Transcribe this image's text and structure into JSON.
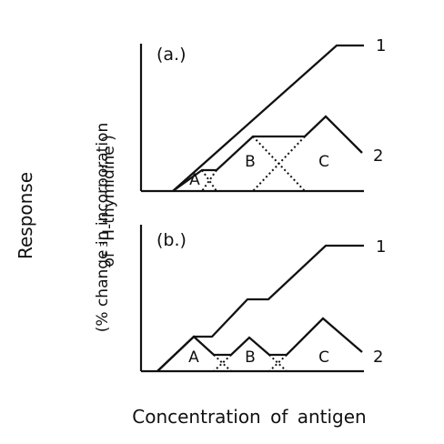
{
  "y_title": "Response",
  "y_subtitle_line1": "(% change in incorporation",
  "y_subtitle_line2_pre": "of ",
  "y_subtitle_line2_sup": "3",
  "y_subtitle_line2_post": "H-thymidine )",
  "x_title": "Concentration of antigen",
  "chart_data": [
    {
      "type": "line",
      "panel_label": "(a.)",
      "series": [
        {
          "name": "1",
          "points": [
            [
              190,
              210
            ],
            [
              370,
              50
            ],
            [
              400,
              50
            ]
          ]
        },
        {
          "name": "2",
          "points": [
            [
              190,
              210
            ],
            [
              222,
              187
            ],
            [
              238,
              187
            ],
            [
              278,
              150
            ],
            [
              335,
              150
            ],
            [
              358,
              128
            ],
            [
              398,
              168
            ]
          ]
        }
      ],
      "dotted": [
        [
          [
            222,
            187
          ],
          [
            238,
            210
          ]
        ],
        [
          [
            238,
            187
          ],
          [
            222,
            210
          ]
        ],
        [
          [
            278,
            150
          ],
          [
            335,
            210
          ]
        ],
        [
          [
            335,
            150
          ],
          [
            278,
            210
          ]
        ]
      ],
      "region_labels": [
        {
          "text": "A",
          "at": [
            214,
            203
          ]
        },
        {
          "text": "B",
          "at": [
            275,
            183
          ]
        },
        {
          "text": "C",
          "at": [
            356,
            183
          ]
        }
      ]
    },
    {
      "type": "line",
      "panel_label": "(b.)",
      "series": [
        {
          "name": "1",
          "points": [
            [
              173,
              408
            ],
            [
              213,
              370
            ],
            [
              233,
              370
            ],
            [
              272,
              329
            ],
            [
              295,
              329
            ],
            [
              358,
              270
            ],
            [
              400,
              270
            ]
          ]
        },
        {
          "name": "2",
          "points": [
            [
              173,
              408
            ],
            [
              213,
              370
            ],
            [
              235,
              390
            ],
            [
              254,
              390
            ],
            [
              274,
              371
            ],
            [
              296,
              390
            ],
            [
              315,
              390
            ],
            [
              355,
              350
            ],
            [
              398,
              387
            ]
          ]
        }
      ],
      "dotted": [
        [
          [
            235,
            390
          ],
          [
            254,
            408
          ]
        ],
        [
          [
            254,
            390
          ],
          [
            235,
            408
          ]
        ],
        [
          [
            296,
            390
          ],
          [
            315,
            408
          ]
        ],
        [
          [
            315,
            390
          ],
          [
            296,
            408
          ]
        ]
      ],
      "region_labels": [
        {
          "text": "A",
          "at": [
            213,
            398
          ]
        },
        {
          "text": "B",
          "at": [
            275,
            398
          ]
        },
        {
          "text": "C",
          "at": [
            356,
            398
          ]
        }
      ]
    }
  ]
}
